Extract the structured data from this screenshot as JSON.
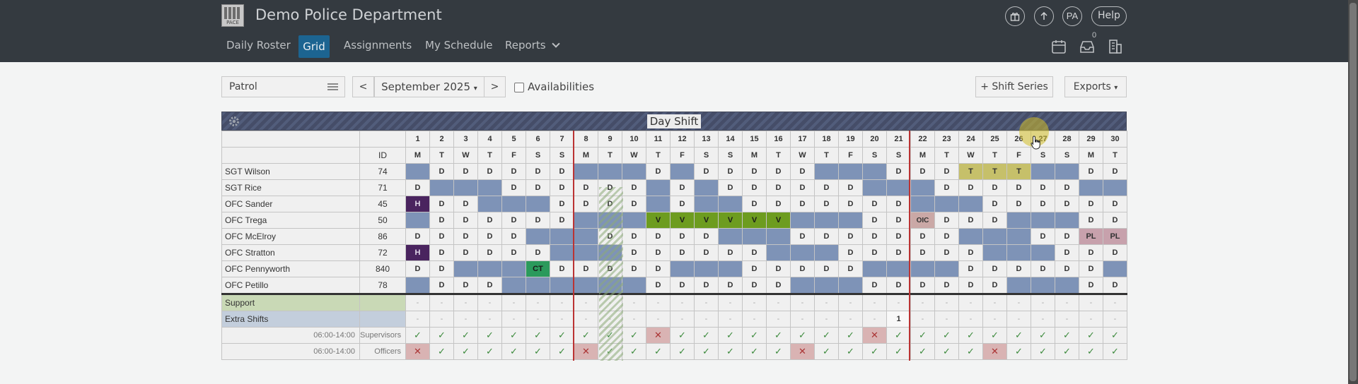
{
  "app": {
    "logo_text": "PACE",
    "title": "Demo Police Department",
    "user_initials": "PA",
    "help_label": "Help",
    "notification_count": "0"
  },
  "nav": {
    "items": [
      "Daily Roster",
      "Grid",
      "Assignments",
      "My Schedule",
      "Reports"
    ],
    "active": "Grid"
  },
  "toolbar": {
    "team": "Patrol",
    "prev": "<",
    "month": "September 2025",
    "next": ">",
    "availabilities_label": "Availabilities",
    "availabilities_checked": false,
    "shift_series_label": "+ Shift Series",
    "exports_label": "Exports"
  },
  "grid": {
    "shift_name": "Day Shift",
    "id_header": "ID",
    "days": [
      "1",
      "2",
      "3",
      "4",
      "5",
      "6",
      "7",
      "8",
      "9",
      "10",
      "11",
      "12",
      "13",
      "14",
      "15",
      "16",
      "17",
      "18",
      "19",
      "20",
      "21",
      "22",
      "23",
      "24",
      "25",
      "26",
      "27",
      "28",
      "29",
      "30"
    ],
    "weekdays": [
      "M",
      "T",
      "W",
      "T",
      "F",
      "S",
      "S",
      "M",
      "T",
      "W",
      "T",
      "F",
      "S",
      "S",
      "M",
      "T",
      "W",
      "T",
      "F",
      "S",
      "S",
      "M",
      "T",
      "W",
      "T",
      "F",
      "S",
      "S",
      "M",
      "T"
    ],
    "rows": [
      {
        "name": "SGT Wilson",
        "id": "74",
        "cells": [
          "",
          "D",
          "D",
          "D",
          "D",
          "D",
          "D",
          "",
          "",
          "",
          "D",
          "",
          "D",
          "D",
          "D",
          "D",
          "D",
          "",
          "",
          "",
          "D",
          "D",
          "D",
          "T",
          "T",
          "T",
          "",
          "",
          "D",
          "D"
        ]
      },
      {
        "name": "SGT Rice",
        "id": "71",
        "cells": [
          "D",
          "",
          "",
          "",
          "D",
          "D",
          "D",
          "D",
          "D",
          "D",
          "",
          "D",
          "",
          "D",
          "D",
          "D",
          "D",
          "D",
          "D",
          "",
          "",
          "",
          "D",
          "D",
          "D",
          "D",
          "D",
          "D",
          "",
          ""
        ]
      },
      {
        "name": "OFC Sander",
        "id": "45",
        "cells": [
          "H",
          "D",
          "D",
          "",
          "",
          "",
          "D",
          "D",
          "D",
          "D",
          "",
          "D",
          "",
          "",
          "D",
          "D",
          "D",
          "D",
          "D",
          "D",
          "D",
          "",
          "",
          "",
          "D",
          "D",
          "D",
          "D",
          "D",
          "D"
        ]
      },
      {
        "name": "OFC Trega",
        "id": "50",
        "cells": [
          "",
          "D",
          "D",
          "D",
          "D",
          "D",
          "D",
          "",
          "",
          "",
          "V",
          "V",
          "V",
          "V",
          "V",
          "V",
          "",
          "",
          "",
          "D",
          "D",
          "OIC",
          "D",
          "D",
          "D",
          "",
          "",
          "",
          "D",
          "D"
        ]
      },
      {
        "name": "OFC McElroy",
        "id": "86",
        "cells": [
          "D",
          "D",
          "D",
          "D",
          "D",
          "",
          "",
          "",
          "D",
          "D",
          "D",
          "D",
          "D",
          "",
          "",
          "",
          "D",
          "D",
          "D",
          "D",
          "D",
          "D",
          "D",
          "",
          "",
          "",
          "D",
          "D",
          "PL",
          "PL"
        ]
      },
      {
        "name": "OFC Stratton",
        "id": "72",
        "cells": [
          "H",
          "D",
          "D",
          "D",
          "D",
          "D",
          "",
          "",
          "",
          "D",
          "D",
          "D",
          "D",
          "D",
          "D",
          "",
          "",
          "",
          "D",
          "D",
          "D",
          "D",
          "D",
          "D",
          "",
          "",
          "",
          "D",
          "D",
          "D"
        ]
      },
      {
        "name": "OFC Pennyworth",
        "id": "840",
        "cells": [
          "D",
          "D",
          "",
          "",
          "",
          "CT",
          "D",
          "D",
          "D",
          "D",
          "D",
          "",
          "",
          "",
          "D",
          "D",
          "D",
          "D",
          "D",
          "",
          "",
          "",
          "",
          "D",
          "D",
          "D",
          "D",
          "D",
          "D",
          ""
        ]
      },
      {
        "name": "OFC Petillo",
        "id": "78",
        "cells": [
          "",
          "D",
          "D",
          "D",
          "",
          "",
          "",
          "",
          "",
          "",
          "D",
          "D",
          "D",
          "D",
          "D",
          "D",
          "",
          "",
          "",
          "D",
          "D",
          "D",
          "D",
          "D",
          "D",
          "",
          "",
          "",
          "D",
          "D"
        ]
      }
    ],
    "support_label": "Support",
    "extra_label": "Extra Shifts",
    "extra_cells": [
      "-",
      "-",
      "-",
      "-",
      "-",
      "-",
      "-",
      "-",
      "-",
      "-",
      "-",
      "-",
      "-",
      "-",
      "-",
      "-",
      "-",
      "-",
      "-",
      "-",
      "1",
      "-",
      "-",
      "-",
      "-",
      "-",
      "-",
      "-",
      "-",
      "-"
    ],
    "requirements": [
      {
        "time": "06:00-14:00",
        "type": "Supervisors",
        "status": [
          "ok",
          "ok",
          "ok",
          "ok",
          "ok",
          "ok",
          "ok",
          "ok",
          "ok",
          "ok",
          "bad",
          "ok",
          "ok",
          "ok",
          "ok",
          "ok",
          "ok",
          "ok",
          "ok",
          "bad",
          "ok",
          "ok",
          "ok",
          "ok",
          "ok",
          "ok",
          "ok",
          "ok",
          "ok",
          "ok"
        ]
      },
      {
        "time": "06:00-14:00",
        "type": "Officers",
        "status": [
          "bad",
          "ok",
          "ok",
          "ok",
          "ok",
          "ok",
          "ok",
          "bad",
          "ok",
          "ok",
          "ok",
          "ok",
          "ok",
          "ok",
          "ok",
          "ok",
          "bad",
          "ok",
          "ok",
          "ok",
          "ok",
          "ok",
          "ok",
          "ok",
          "bad",
          "ok",
          "ok",
          "ok",
          "ok",
          "ok"
        ]
      }
    ]
  }
}
